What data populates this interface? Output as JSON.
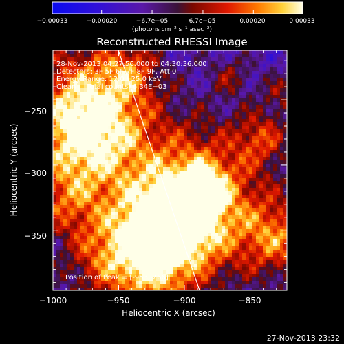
{
  "chart_data": {
    "type": "heatmap",
    "title": "Reconstructed RHESSI Image",
    "xlabel": "Heliocentric X (arcsec)",
    "ylabel": "Heliocentric Y (arcsec)",
    "xlim": [
      -1000,
      -822
    ],
    "ylim": [
      -396,
      -212
    ],
    "x_ticks": [
      "−1000",
      "−950",
      "−900",
      "−850"
    ],
    "y_ticks": [
      "−250",
      "−300",
      "−350"
    ],
    "colorbar": {
      "label": "(photons cm⁻² s⁻¹ asec⁻²)",
      "ticks": [
        "−0.00033",
        "−0.00020",
        "−6.7e−05",
        "6.7e−05",
        "0.00020",
        "0.00033"
      ],
      "range": [
        -0.00033,
        0.00033
      ]
    },
    "annotations": [
      "28-Nov-2013 04:27:56.000 to 04:30:36.000",
      "Detectors: 3F 5F 6F 7F 8F 9F, Att 0",
      "Energy Range: 12.0 - 25.0 keV",
      "Clean     Total counts: 6.34E+03"
    ],
    "peak_label": "Position of Peak = [-953,-266]",
    "limb_line": true,
    "grid": false
  },
  "footer_timestamp": "27-Nov-2013 23:32"
}
